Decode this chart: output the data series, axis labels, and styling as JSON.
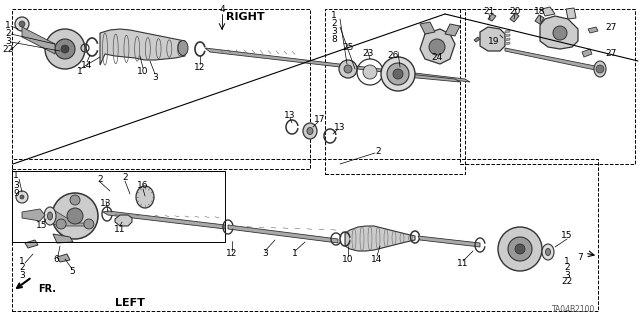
{
  "bg_color": "#ffffff",
  "text_color": "#000000",
  "diagram_color": "#444444",
  "watermark": "TA04B2100",
  "font_size_labels": 6.5,
  "font_size_heading": 8,
  "gray_fill": "#bbbbbb",
  "gray_dark": "#333333",
  "gray_med": "#777777",
  "right_label": "RIGHT",
  "left_label": "LEFT",
  "fr_label": "FR."
}
